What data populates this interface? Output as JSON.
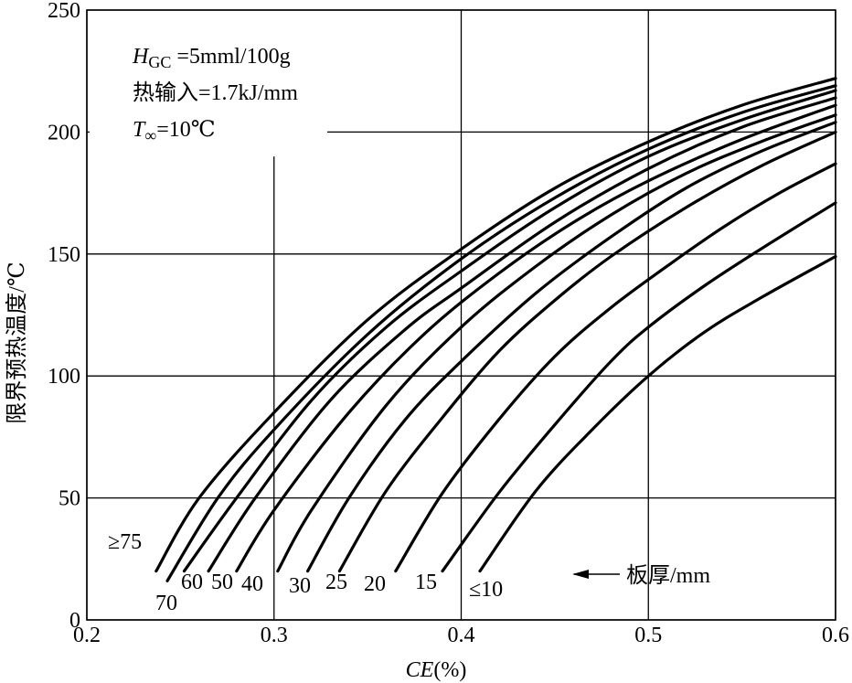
{
  "chart_data": {
    "type": "line",
    "xlabel_italic": "CE",
    "xlabel_rest": "(%)",
    "ylabel": "限界预热温度/℃",
    "xlim": [
      0.2,
      0.6
    ],
    "ylim": [
      0,
      250
    ],
    "xticks": [
      "0.2",
      "0.3",
      "0.4",
      "0.5",
      "0.6"
    ],
    "yticks": [
      "0",
      "50",
      "100",
      "150",
      "200",
      "250"
    ],
    "grid": true,
    "annotations": {
      "line1_var": "H",
      "line1_sub": "GC",
      "line1_rest": " =5mml/100g",
      "line2": "热输入=1.7kJ/mm",
      "line3_var": "T",
      "line3_sub": "∞",
      "line3_rest": "=10℃",
      "arrow_label": "板厚/mm"
    },
    "series": [
      {
        "name": "≥75",
        "x": [
          0.237,
          0.26,
          0.3,
          0.35,
          0.4,
          0.45,
          0.5,
          0.55,
          0.6
        ],
        "y": [
          20,
          50,
          85,
          123,
          152,
          177,
          196,
          211,
          222
        ]
      },
      {
        "name": "70",
        "x": [
          0.243,
          0.27,
          0.3,
          0.35,
          0.4,
          0.45,
          0.5,
          0.55,
          0.6
        ],
        "y": [
          16,
          50,
          78,
          117,
          148,
          173,
          193,
          208,
          219
        ]
      },
      {
        "name": "60",
        "x": [
          0.252,
          0.28,
          0.32,
          0.36,
          0.4,
          0.45,
          0.5,
          0.55,
          0.6
        ],
        "y": [
          20,
          50,
          90,
          120,
          143,
          169,
          190,
          205,
          217
        ]
      },
      {
        "name": "50",
        "x": [
          0.265,
          0.29,
          0.33,
          0.37,
          0.4,
          0.45,
          0.5,
          0.55,
          0.6
        ],
        "y": [
          20,
          50,
          90,
          119,
          136,
          163,
          185,
          202,
          214
        ]
      },
      {
        "name": "40",
        "x": [
          0.28,
          0.3,
          0.34,
          0.38,
          0.42,
          0.46,
          0.5,
          0.55,
          0.6
        ],
        "y": [
          20,
          45,
          85,
          117,
          142,
          163,
          180,
          197,
          211
        ]
      },
      {
        "name": "30",
        "x": [
          0.302,
          0.32,
          0.36,
          0.4,
          0.44,
          0.48,
          0.52,
          0.56,
          0.6
        ],
        "y": [
          20,
          45,
          88,
          120,
          145,
          166,
          183,
          196,
          207
        ]
      },
      {
        "name": "25",
        "x": [
          0.318,
          0.34,
          0.37,
          0.4,
          0.44,
          0.48,
          0.52,
          0.56,
          0.6
        ],
        "y": [
          20,
          50,
          82,
          106,
          134,
          157,
          177,
          192,
          204
        ]
      },
      {
        "name": "20",
        "x": [
          0.335,
          0.36,
          0.39,
          0.42,
          0.45,
          0.48,
          0.52,
          0.56,
          0.6
        ],
        "y": [
          20,
          53,
          83,
          110,
          131,
          149,
          169,
          186,
          200
        ]
      },
      {
        "name": "15",
        "x": [
          0.365,
          0.39,
          0.42,
          0.45,
          0.48,
          0.51,
          0.54,
          0.57,
          0.6
        ],
        "y": [
          20,
          52,
          82,
          108,
          128,
          145,
          161,
          175,
          187
        ]
      },
      {
        "name": "≤10",
        "x": [
          0.39,
          0.42,
          0.45,
          0.48,
          0.5,
          0.53,
          0.56,
          0.6
        ],
        "y": [
          20,
          52,
          80,
          106,
          120,
          137,
          152,
          171
        ]
      },
      {
        "name": "",
        "x": [
          0.41,
          0.44,
          0.47,
          0.5,
          0.53,
          0.56,
          0.6
        ],
        "y": [
          20,
          53,
          78,
          100,
          118,
          132,
          149
        ]
      }
    ],
    "curve_labels": [
      "≥75",
      "70",
      "60",
      "50",
      "40",
      "30",
      "25",
      "20",
      "15",
      "≤10"
    ]
  }
}
